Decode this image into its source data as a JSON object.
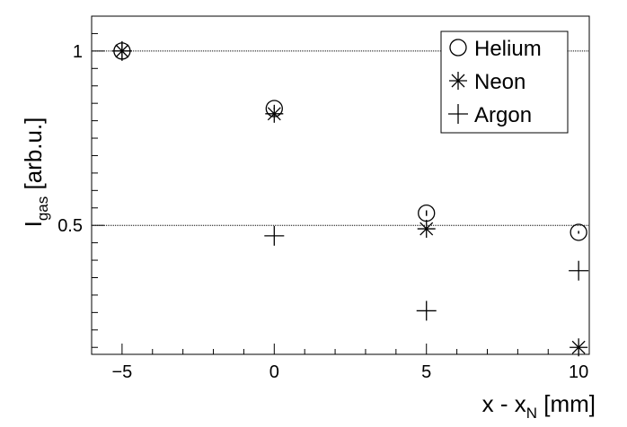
{
  "chart_data": {
    "type": "scatter",
    "xlabel": {
      "main": "x - x",
      "sub": "N",
      "unit": " [mm]"
    },
    "ylabel": {
      "main": "I",
      "sub": "gas",
      "unit": " [arb.u.]"
    },
    "xlim": [
      -6.0,
      10.35
    ],
    "ylim": [
      0.13,
      1.1
    ],
    "x_ticks": [
      -5,
      0,
      5,
      10
    ],
    "x_tick_labels": [
      "−5",
      "0",
      "5",
      "10"
    ],
    "y_ticks": [
      0.5,
      1
    ],
    "y_tick_labels": [
      "0.5",
      "1"
    ],
    "reference_lines_y": [
      1.0,
      0.5
    ],
    "legend_position": "top-right",
    "series": [
      {
        "name": "Helium",
        "marker": "open-circle",
        "x": [
          -5,
          0,
          5,
          10
        ],
        "y": [
          1.0,
          0.835,
          0.535,
          0.48
        ],
        "y_err": [
          0.003,
          0.003,
          0.008,
          0.004
        ]
      },
      {
        "name": "Neon",
        "marker": "asterisk",
        "x": [
          -5,
          0,
          5,
          10
        ],
        "y": [
          1.0,
          0.82,
          0.49,
          0.15
        ],
        "y_err": [
          0.003,
          0.003,
          0.004,
          0.003
        ]
      },
      {
        "name": "Argon",
        "marker": "plus",
        "x": [
          -5,
          0,
          5,
          10
        ],
        "y": [
          1.0,
          0.47,
          0.255,
          0.37
        ],
        "y_err": [
          0.0,
          0.0,
          0.0,
          0.0
        ]
      }
    ]
  }
}
